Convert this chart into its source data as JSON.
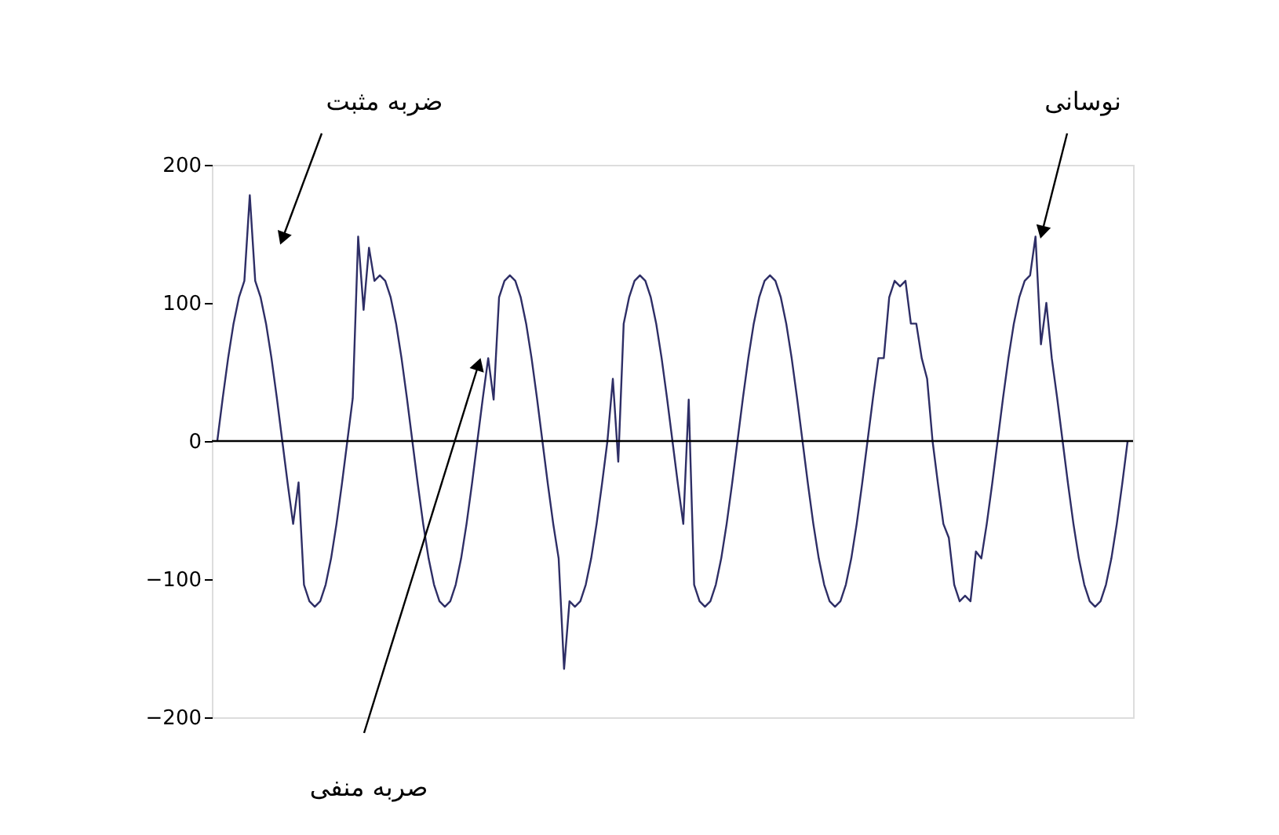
{
  "chart_data": {
    "type": "line",
    "annotations": [
      "ضربه مثبت",
      "نوسانی",
      "صربه منفی"
    ],
    "categories": [
      null,
      null,
      null,
      null,
      null,
      null,
      null,
      null,
      null,
      null,
      null,
      null,
      null,
      null,
      null,
      null,
      null,
      null,
      null,
      null,
      null,
      null,
      null,
      null,
      null,
      null,
      null,
      null,
      null,
      null,
      null,
      null,
      null,
      null,
      null,
      null,
      null,
      null,
      null,
      null,
      null,
      null,
      null,
      null,
      null,
      null,
      null,
      null,
      null,
      null,
      null,
      null,
      null,
      null,
      null,
      null,
      null,
      null,
      null,
      null,
      null,
      null,
      null,
      null,
      null,
      null,
      null,
      null,
      null,
      null,
      null,
      null,
      null,
      null,
      null,
      null,
      null,
      null,
      null,
      null,
      null,
      null,
      null,
      null,
      null,
      null,
      null,
      null,
      null,
      null,
      null,
      null,
      null,
      null,
      null,
      null,
      null,
      null,
      null,
      null,
      null,
      null,
      null,
      null,
      null,
      null,
      null,
      null,
      null,
      null,
      null,
      null,
      null,
      null,
      null,
      null,
      null,
      null,
      null,
      null,
      null,
      null,
      null,
      null,
      null,
      null,
      null,
      null,
      null,
      null,
      null,
      null,
      null,
      null,
      null,
      null,
      null,
      null,
      null,
      null,
      null,
      null,
      null,
      null,
      null,
      null,
      null,
      null,
      null,
      null,
      null,
      null,
      null,
      null,
      null,
      null,
      null,
      null,
      null,
      null,
      null,
      null,
      null,
      null,
      null,
      null,
      null,
      null,
      null
    ],
    "series": [
      {
        "color": "#2e2e66",
        "values": [
          0,
          31,
          60,
          85,
          104,
          116,
          178,
          116,
          104,
          85,
          60,
          31,
          0,
          -31,
          -60,
          -30,
          -104,
          -116,
          -120,
          -116,
          -104,
          -85,
          -60,
          -31,
          0,
          31,
          148,
          95,
          140,
          116,
          120,
          116,
          104,
          85,
          60,
          31,
          0,
          -31,
          -60,
          -85,
          -104,
          -116,
          -120,
          -116,
          -104,
          -85,
          -60,
          -31,
          0,
          31,
          60,
          30,
          104,
          116,
          120,
          116,
          104,
          85,
          60,
          31,
          0,
          -31,
          -60,
          -85,
          -165,
          -116,
          -120,
          -116,
          -104,
          -85,
          -60,
          -31,
          0,
          45,
          -15,
          85,
          104,
          116,
          120,
          116,
          104,
          85,
          60,
          31,
          0,
          -31,
          -60,
          30,
          -104,
          -116,
          -120,
          -116,
          -104,
          -85,
          -60,
          -31,
          0,
          31,
          60,
          85,
          104,
          116,
          120,
          116,
          104,
          85,
          60,
          31,
          0,
          -31,
          -60,
          -85,
          -104,
          -116,
          -120,
          -116,
          -104,
          -85,
          -60,
          -31,
          0,
          31,
          60,
          60,
          104,
          116,
          112,
          116,
          85,
          85,
          60,
          45,
          0,
          -31,
          -60,
          -70,
          -104,
          -116,
          -112,
          -116,
          -80,
          -85,
          -60,
          -31,
          0,
          31,
          60,
          85,
          104,
          116,
          120,
          148,
          70,
          100,
          60,
          31,
          0,
          -31,
          -60,
          -85,
          -104,
          -116,
          -120,
          -116,
          -104,
          -85,
          -60,
          -31,
          0
        ]
      }
    ],
    "ylim": [
      -200,
      200
    ],
    "yticks": [
      -200,
      -100,
      0,
      100,
      200
    ],
    "ref_lines": [
      {
        "axis": "y",
        "value": 0,
        "color": "#000000"
      }
    ],
    "grid": false,
    "tick_labels": "y",
    "line_style": "solid",
    "marker": "none"
  }
}
